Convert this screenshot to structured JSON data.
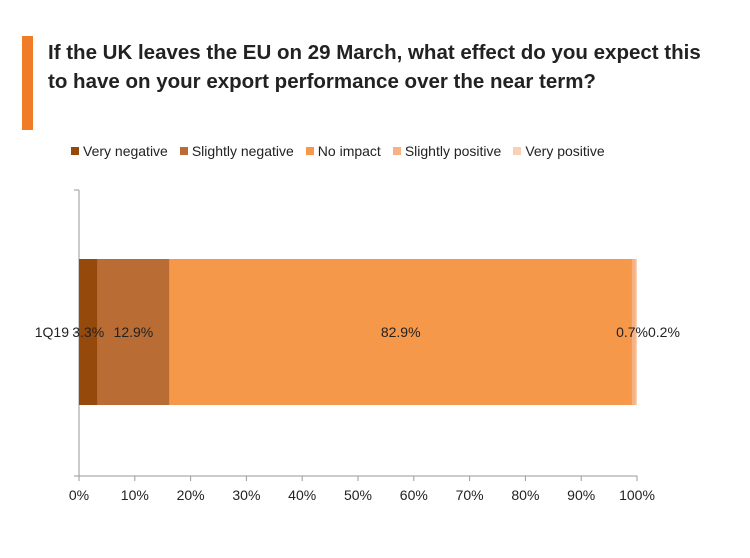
{
  "title": "If the UK leaves the EU on 29 March, what effect do you expect this to have on your export performance over the near term?",
  "colors": {
    "accent_bar": "#f07c28",
    "axis": "#9a9a9a"
  },
  "chart_data": {
    "type": "bar",
    "orientation": "horizontal",
    "stacked": true,
    "categories": [
      "1Q19"
    ],
    "series": [
      {
        "name": "Very negative",
        "values": [
          3.3
        ],
        "label": "3.3%",
        "color": "#954a0c"
      },
      {
        "name": "Slightly negative",
        "values": [
          12.9
        ],
        "label": "12.9%",
        "color": "#b96c34"
      },
      {
        "name": "No impact",
        "values": [
          82.9
        ],
        "label": "82.9%",
        "color": "#f5984a"
      },
      {
        "name": "Slightly positive",
        "values": [
          0.7
        ],
        "label": "0.7%",
        "color": "#f6b283"
      },
      {
        "name": "Very positive",
        "values": [
          0.2
        ],
        "label": "0.2%",
        "color": "#f9d0b4"
      }
    ],
    "xlim": [
      0,
      100
    ],
    "xticks": [
      "0%",
      "10%",
      "20%",
      "30%",
      "40%",
      "50%",
      "60%",
      "70%",
      "80%",
      "90%",
      "100%"
    ],
    "legend_position": "top",
    "grid": false
  }
}
